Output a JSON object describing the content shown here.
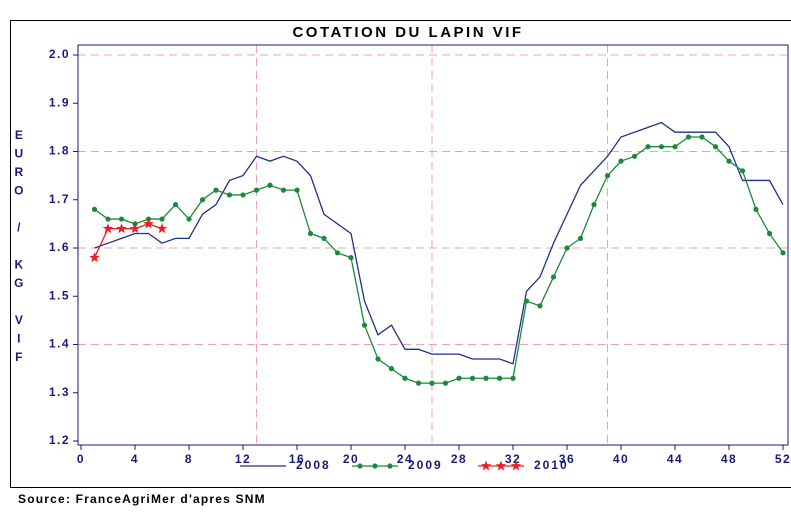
{
  "chart_data": {
    "type": "line",
    "title": "COTATION DU LAPIN VIF",
    "y_label": "EURO / KG VIF",
    "source": "Source: FranceAgriMer d'apres SNM",
    "x": [
      1,
      2,
      3,
      4,
      5,
      6,
      7,
      8,
      9,
      10,
      11,
      12,
      13,
      14,
      15,
      16,
      17,
      18,
      19,
      20,
      21,
      22,
      23,
      24,
      25,
      26,
      27,
      28,
      29,
      30,
      31,
      32,
      33,
      34,
      35,
      36,
      37,
      38,
      39,
      40,
      41,
      42,
      43,
      44,
      45,
      46,
      47,
      48,
      49,
      50,
      51,
      52
    ],
    "series": [
      {
        "name": "2008",
        "color": "#1f2f8f",
        "marker": "none",
        "values": [
          1.6,
          1.61,
          1.62,
          1.63,
          1.63,
          1.61,
          1.62,
          1.62,
          1.67,
          1.69,
          1.74,
          1.75,
          1.79,
          1.78,
          1.79,
          1.78,
          1.75,
          1.67,
          1.65,
          1.63,
          1.49,
          1.42,
          1.44,
          1.39,
          1.39,
          1.38,
          1.38,
          1.38,
          1.37,
          1.37,
          1.37,
          1.36,
          1.51,
          1.54,
          1.61,
          1.67,
          1.73,
          1.76,
          1.79,
          1.83,
          1.84,
          1.85,
          1.86,
          1.84,
          1.84,
          1.84,
          1.84,
          1.81,
          1.74,
          1.74,
          1.74,
          1.69
        ]
      },
      {
        "name": "2009",
        "color": "#1a8a3a",
        "marker": "dot",
        "values": [
          1.68,
          1.66,
          1.66,
          1.65,
          1.66,
          1.66,
          1.69,
          1.66,
          1.7,
          1.72,
          1.71,
          1.71,
          1.72,
          1.73,
          1.72,
          1.72,
          1.63,
          1.62,
          1.59,
          1.58,
          1.44,
          1.37,
          1.35,
          1.33,
          1.32,
          1.32,
          1.32,
          1.33,
          1.33,
          1.33,
          1.33,
          1.33,
          1.49,
          1.48,
          1.54,
          1.6,
          1.62,
          1.69,
          1.75,
          1.78,
          1.79,
          1.81,
          1.81,
          1.81,
          1.83,
          1.83,
          1.81,
          1.78,
          1.76,
          1.68,
          1.63,
          1.59
        ]
      },
      {
        "name": "2010",
        "color": "#e8202a",
        "marker": "star",
        "values": [
          1.58,
          1.64,
          1.64,
          1.64,
          1.65,
          1.64,
          null,
          null,
          null,
          null,
          null,
          null,
          null,
          null,
          null,
          null,
          null,
          null,
          null,
          null,
          null,
          null,
          null,
          null,
          null,
          null,
          null,
          null,
          null,
          null,
          null,
          null,
          null,
          null,
          null,
          null,
          null,
          null,
          null,
          null,
          null,
          null,
          null,
          null,
          null,
          null,
          null,
          null,
          null,
          null,
          null,
          null
        ]
      }
    ],
    "xlim": [
      0,
      52
    ],
    "xticks": [
      0,
      4,
      8,
      12,
      16,
      20,
      24,
      28,
      32,
      36,
      40,
      44,
      48,
      52
    ],
    "ylim": [
      1.2,
      2.0
    ],
    "yticks": [
      1.2,
      1.3,
      1.4,
      1.5,
      1.6,
      1.7,
      1.8,
      1.9,
      {
        "value": 2.0,
        "label": "2.0"
      }
    ],
    "ygrid": [
      1.4,
      1.6,
      1.8,
      2.0
    ],
    "xgrid": [
      13,
      26,
      39
    ],
    "grid_color": "#f0a0b0",
    "legend": "bottom"
  }
}
